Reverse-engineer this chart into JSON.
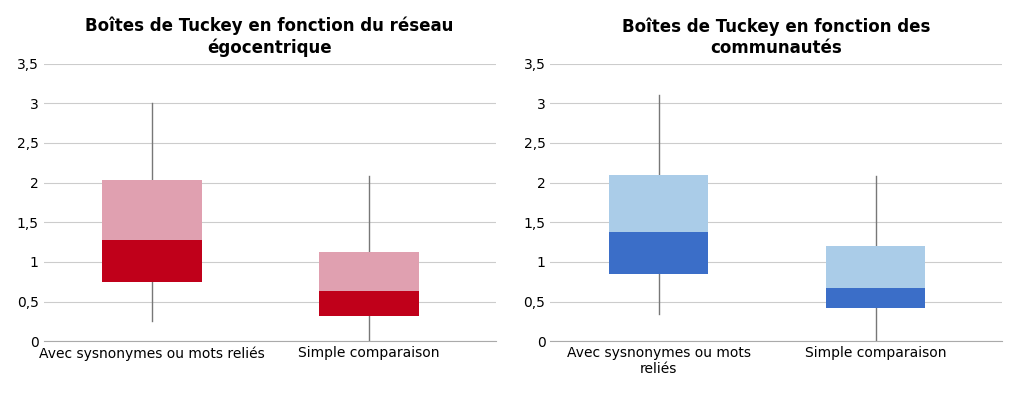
{
  "left_title": "Boîtes de Tuckey en fonction du réseau\négocentrique",
  "right_title": "Boîtes de Tuckey en fonction des\ncommunautés",
  "left_x_labels": [
    "Avec sysnonymes ou mots reliés",
    "Simple comparaison"
  ],
  "right_x_labels": [
    "Avec sysnonymes ou mots\nreliés",
    "Simple comparaison"
  ],
  "left_boxes": [
    {
      "whisker_low": 0.25,
      "q1": 0.75,
      "median": 1.28,
      "q3": 2.03,
      "whisker_high": 3.0
    },
    {
      "whisker_low": 0.02,
      "q1": 0.32,
      "median": 0.63,
      "q3": 1.13,
      "whisker_high": 2.08
    }
  ],
  "right_boxes": [
    {
      "whisker_low": 0.35,
      "q1": 0.85,
      "median": 1.38,
      "q3": 2.1,
      "whisker_high": 3.1
    },
    {
      "whisker_low": 0.02,
      "q1": 0.42,
      "median": 0.67,
      "q3": 1.2,
      "whisker_high": 2.08
    }
  ],
  "left_box_color_dark": "#C0001A",
  "left_box_color_light": "#E0A0B0",
  "right_box_color_dark": "#3B6EC8",
  "right_box_color_light": "#AACCE8",
  "ylim": [
    0,
    3.5
  ],
  "yticks": [
    0,
    0.5,
    1.0,
    1.5,
    2.0,
    2.5,
    3.0,
    3.5
  ],
  "ytick_labels": [
    "0",
    "0,5",
    "1",
    "1,5",
    "2",
    "2,5",
    "3",
    "3,5"
  ],
  "background_color": "#FFFFFF",
  "grid_color": "#CCCCCC",
  "title_fontsize": 12,
  "tick_fontsize": 10,
  "label_fontsize": 10,
  "x_positions": [
    1.0,
    2.2
  ],
  "xlim": [
    0.4,
    2.9
  ],
  "box_width": 0.55
}
